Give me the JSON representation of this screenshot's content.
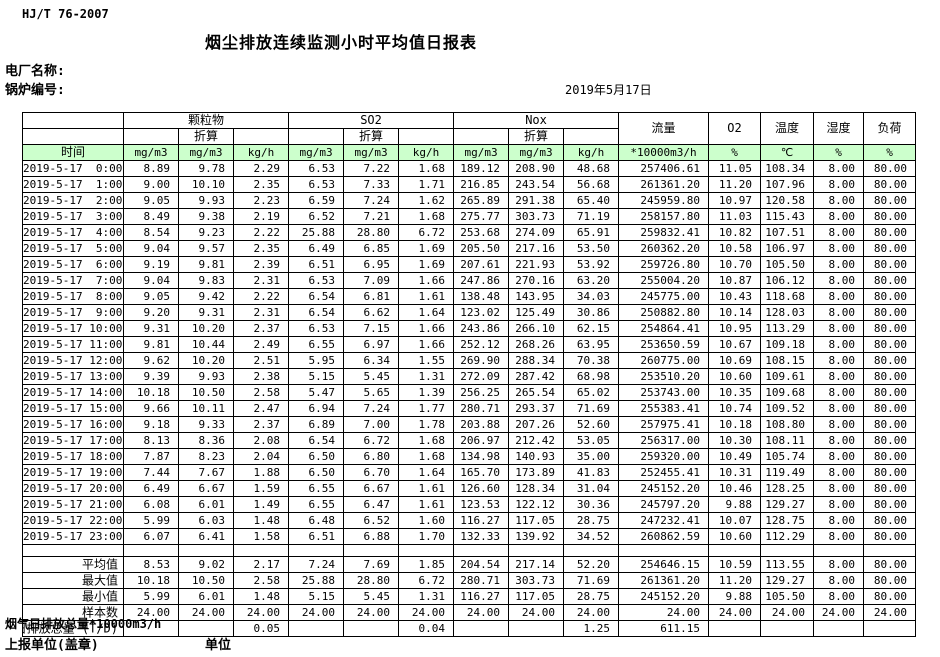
{
  "header": {
    "standard": "HJ/T  76-2007",
    "title": "烟尘排放连续监测小时平均值日报表",
    "plant_name_label": "电厂名称:",
    "boiler_no_label": "锅炉编号:",
    "report_date": "2019年5月17日"
  },
  "table": {
    "time_header": "时间",
    "group_pm": "颗粒物",
    "group_so2": "SO2",
    "group_nox": "Nox",
    "converted_label": "折算",
    "flow_header": "流量",
    "o2_header": "O2",
    "temperature_header": "温度",
    "humidity_header": "湿度",
    "load_header": "负荷",
    "units": [
      "mg/m3",
      "mg/m3",
      "kg/h",
      "mg/m3",
      "mg/m3",
      "kg/h",
      "mg/m3",
      "mg/m3",
      "kg/h",
      "*10000m3/h",
      "%",
      "℃",
      "%",
      "%"
    ],
    "rows": [
      [
        "2019-5-17  0:00",
        "8.89",
        "9.78",
        "2.29",
        "6.53",
        "7.22",
        "1.68",
        "189.12",
        "208.90",
        "48.68",
        "257406.61",
        "11.05",
        "108.34",
        "8.00",
        "80.00"
      ],
      [
        "2019-5-17  1:00",
        "9.00",
        "10.10",
        "2.35",
        "6.53",
        "7.33",
        "1.71",
        "216.85",
        "243.54",
        "56.68",
        "261361.20",
        "11.20",
        "107.96",
        "8.00",
        "80.00"
      ],
      [
        "2019-5-17  2:00",
        "9.05",
        "9.93",
        "2.23",
        "6.59",
        "7.24",
        "1.62",
        "265.89",
        "291.38",
        "65.40",
        "245959.80",
        "10.97",
        "120.58",
        "8.00",
        "80.00"
      ],
      [
        "2019-5-17  3:00",
        "8.49",
        "9.38",
        "2.19",
        "6.52",
        "7.21",
        "1.68",
        "275.77",
        "303.73",
        "71.19",
        "258157.80",
        "11.03",
        "115.43",
        "8.00",
        "80.00"
      ],
      [
        "2019-5-17  4:00",
        "8.54",
        "9.23",
        "2.22",
        "25.88",
        "28.80",
        "6.72",
        "253.68",
        "274.09",
        "65.91",
        "259832.41",
        "10.82",
        "107.51",
        "8.00",
        "80.00"
      ],
      [
        "2019-5-17  5:00",
        "9.04",
        "9.57",
        "2.35",
        "6.49",
        "6.85",
        "1.69",
        "205.50",
        "217.16",
        "53.50",
        "260362.20",
        "10.58",
        "106.97",
        "8.00",
        "80.00"
      ],
      [
        "2019-5-17  6:00",
        "9.19",
        "9.81",
        "2.39",
        "6.51",
        "6.95",
        "1.69",
        "207.61",
        "221.93",
        "53.92",
        "259726.80",
        "10.70",
        "105.50",
        "8.00",
        "80.00"
      ],
      [
        "2019-5-17  7:00",
        "9.04",
        "9.83",
        "2.31",
        "6.53",
        "7.09",
        "1.66",
        "247.86",
        "270.16",
        "63.20",
        "255004.20",
        "10.87",
        "106.12",
        "8.00",
        "80.00"
      ],
      [
        "2019-5-17  8:00",
        "9.05",
        "9.42",
        "2.22",
        "6.54",
        "6.81",
        "1.61",
        "138.48",
        "143.95",
        "34.03",
        "245775.00",
        "10.43",
        "118.68",
        "8.00",
        "80.00"
      ],
      [
        "2019-5-17  9:00",
        "9.20",
        "9.31",
        "2.31",
        "6.54",
        "6.62",
        "1.64",
        "123.02",
        "125.49",
        "30.86",
        "250882.80",
        "10.14",
        "128.03",
        "8.00",
        "80.00"
      ],
      [
        "2019-5-17 10:00",
        "9.31",
        "10.20",
        "2.37",
        "6.53",
        "7.15",
        "1.66",
        "243.86",
        "266.10",
        "62.15",
        "254864.41",
        "10.95",
        "113.29",
        "8.00",
        "80.00"
      ],
      [
        "2019-5-17 11:00",
        "9.81",
        "10.44",
        "2.49",
        "6.55",
        "6.97",
        "1.66",
        "252.12",
        "268.26",
        "63.95",
        "253650.59",
        "10.67",
        "109.18",
        "8.00",
        "80.00"
      ],
      [
        "2019-5-17 12:00",
        "9.62",
        "10.20",
        "2.51",
        "5.95",
        "6.34",
        "1.55",
        "269.90",
        "288.34",
        "70.38",
        "260775.00",
        "10.69",
        "108.15",
        "8.00",
        "80.00"
      ],
      [
        "2019-5-17 13:00",
        "9.39",
        "9.93",
        "2.38",
        "5.15",
        "5.45",
        "1.31",
        "272.09",
        "287.42",
        "68.98",
        "253510.20",
        "10.60",
        "109.61",
        "8.00",
        "80.00"
      ],
      [
        "2019-5-17 14:00",
        "10.18",
        "10.50",
        "2.58",
        "5.47",
        "5.65",
        "1.39",
        "256.25",
        "265.54",
        "65.02",
        "253743.00",
        "10.35",
        "109.68",
        "8.00",
        "80.00"
      ],
      [
        "2019-5-17 15:00",
        "9.66",
        "10.11",
        "2.47",
        "6.94",
        "7.24",
        "1.77",
        "280.71",
        "293.37",
        "71.69",
        "255383.41",
        "10.74",
        "109.52",
        "8.00",
        "80.00"
      ],
      [
        "2019-5-17 16:00",
        "9.18",
        "9.33",
        "2.37",
        "6.89",
        "7.00",
        "1.78",
        "203.88",
        "207.26",
        "52.60",
        "257975.41",
        "10.18",
        "108.80",
        "8.00",
        "80.00"
      ],
      [
        "2019-5-17 17:00",
        "8.13",
        "8.36",
        "2.08",
        "6.54",
        "6.72",
        "1.68",
        "206.97",
        "212.42",
        "53.05",
        "256317.00",
        "10.30",
        "108.11",
        "8.00",
        "80.00"
      ],
      [
        "2019-5-17 18:00",
        "7.87",
        "8.23",
        "2.04",
        "6.50",
        "6.80",
        "1.68",
        "134.98",
        "140.93",
        "35.00",
        "259320.00",
        "10.49",
        "105.74",
        "8.00",
        "80.00"
      ],
      [
        "2019-5-17 19:00",
        "7.44",
        "7.67",
        "1.88",
        "6.50",
        "6.70",
        "1.64",
        "165.70",
        "173.89",
        "41.83",
        "252455.41",
        "10.31",
        "119.49",
        "8.00",
        "80.00"
      ],
      [
        "2019-5-17 20:00",
        "6.49",
        "6.67",
        "1.59",
        "6.55",
        "6.67",
        "1.61",
        "126.60",
        "128.34",
        "31.04",
        "245152.20",
        "10.46",
        "128.25",
        "8.00",
        "80.00"
      ],
      [
        "2019-5-17 21:00",
        "6.08",
        "6.01",
        "1.49",
        "6.55",
        "6.47",
        "1.61",
        "123.53",
        "122.12",
        "30.36",
        "245797.20",
        "9.88",
        "129.27",
        "8.00",
        "80.00"
      ],
      [
        "2019-5-17 22:00",
        "5.99",
        "6.03",
        "1.48",
        "6.48",
        "6.52",
        "1.60",
        "116.27",
        "117.05",
        "28.75",
        "247232.41",
        "10.07",
        "128.75",
        "8.00",
        "80.00"
      ],
      [
        "2019-5-17 23:00",
        "6.07",
        "6.41",
        "1.58",
        "6.51",
        "6.88",
        "1.70",
        "132.33",
        "139.92",
        "34.52",
        "260862.59",
        "10.60",
        "112.29",
        "8.00",
        "80.00"
      ]
    ],
    "summary_rows": [
      {
        "label": "平均值",
        "values": [
          "8.53",
          "9.02",
          "2.17",
          "7.24",
          "7.69",
          "1.85",
          "204.54",
          "217.14",
          "52.20",
          "254646.15",
          "10.59",
          "113.55",
          "8.00",
          "80.00"
        ]
      },
      {
        "label": "最大值",
        "values": [
          "10.18",
          "10.50",
          "2.58",
          "25.88",
          "28.80",
          "6.72",
          "280.71",
          "303.73",
          "71.69",
          "261361.20",
          "11.20",
          "129.27",
          "8.00",
          "80.00"
        ]
      },
      {
        "label": "最小值",
        "values": [
          "5.99",
          "6.01",
          "1.48",
          "5.15",
          "5.45",
          "1.31",
          "116.27",
          "117.05",
          "28.75",
          "245152.20",
          "9.88",
          "105.50",
          "8.00",
          "80.00"
        ]
      },
      {
        "label": "样本数",
        "values": [
          "24.00",
          "24.00",
          "24.00",
          "24.00",
          "24.00",
          "24.00",
          "24.00",
          "24.00",
          "24.00",
          "24.00",
          "24.00",
          "24.00",
          "24.00",
          "24.00"
        ]
      },
      {
        "label": "日排放总量 (T/D)",
        "values": [
          "",
          "",
          "0.05",
          "",
          "",
          "0.04",
          "",
          "",
          "1.25",
          "611.15",
          "",
          "",
          "",
          ""
        ]
      }
    ]
  },
  "footer": {
    "flue_gas_total_label": "烟气日排放总量*10000m3/h",
    "report_unit_label": "上报单位(盖章)",
    "unit_label": "单位"
  }
}
